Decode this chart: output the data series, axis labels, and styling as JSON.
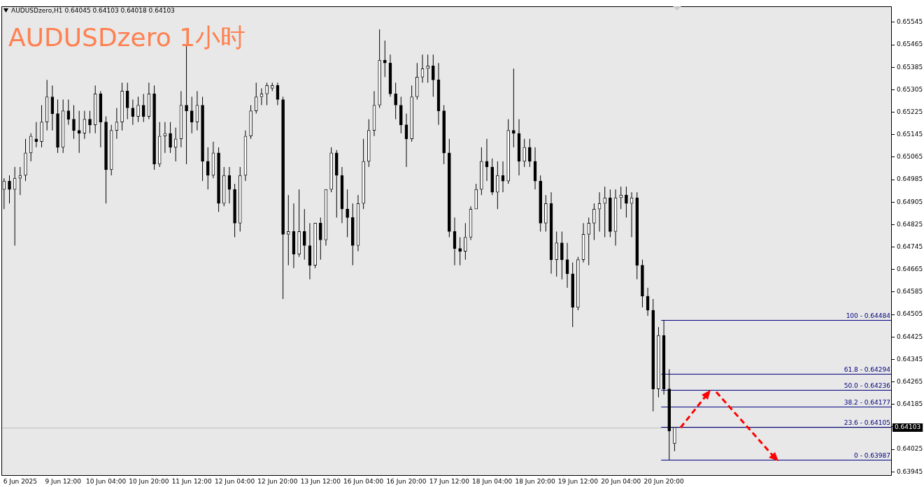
{
  "chart_data": {
    "type": "candlestick",
    "title": "AUDUSDzero 1小时",
    "subtitle": "AUDUSDzero,H1  0.64045 0.64103 0.64018 0.64103",
    "categories": [
      null,
      null,
      null,
      "6 Jun 2025",
      null,
      null,
      null,
      null,
      null,
      null,
      null,
      "9 Jun 12:00",
      null,
      null,
      null,
      null,
      null,
      null,
      null,
      "10 Jun 04:00",
      null,
      null,
      null,
      null,
      null,
      null,
      null,
      "10 Jun 20:00",
      null,
      null,
      null,
      null,
      null,
      null,
      null,
      "11 Jun 12:00",
      null,
      null,
      null,
      null,
      null,
      null,
      null,
      "12 Jun 04:00",
      null,
      null,
      null,
      null,
      null,
      null,
      null,
      "12 Jun 20:00",
      null,
      null,
      null,
      null,
      null,
      null,
      null,
      "13 Jun 12:00",
      null,
      null,
      null,
      null,
      null,
      null,
      null,
      "16 Jun 04:00",
      null,
      null,
      null,
      null,
      null,
      null,
      null,
      "16 Jun 20:00",
      null,
      null,
      null,
      null,
      null,
      null,
      null,
      "17 Jun 12:00",
      null,
      null,
      null,
      null,
      null,
      null,
      null,
      "18 Jun 04:00",
      null,
      null,
      null,
      null,
      null,
      null,
      null,
      "18 Jun 20:00",
      null,
      null,
      null,
      null,
      null,
      null,
      null,
      "19 Jun 12:00",
      null,
      null,
      null,
      null,
      null,
      null,
      null,
      "20 Jun 04:00",
      null,
      null,
      null,
      null,
      null,
      null,
      null,
      "20 Jun 20:00",
      null,
      null,
      null,
      null,
      null,
      null,
      null,
      null,
      null,
      null,
      null,
      null,
      null,
      null,
      null,
      null,
      null,
      null,
      null,
      null,
      null,
      null,
      null,
      null,
      null,
      null,
      null,
      null,
      null,
      null,
      null,
      null,
      null,
      null,
      null,
      null,
      null,
      null,
      null,
      null,
      null,
      null
    ],
    "ohlc": [
      [
        0.6495,
        0.6499,
        0.6488,
        0.6498
      ],
      [
        0.6498,
        0.65,
        0.649,
        0.6495
      ],
      [
        0.6495,
        0.6503,
        0.6475,
        0.6499
      ],
      [
        0.6499,
        0.6503,
        0.6493,
        0.65
      ],
      [
        0.65,
        0.6513,
        0.6498,
        0.6508
      ],
      [
        0.6508,
        0.6515,
        0.6505,
        0.6514
      ],
      [
        0.6513,
        0.6519,
        0.651,
        0.6512
      ],
      [
        0.6512,
        0.6525,
        0.651,
        0.6519
      ],
      [
        0.6519,
        0.6534,
        0.6516,
        0.6528
      ],
      [
        0.6528,
        0.6532,
        0.6516,
        0.6522
      ],
      [
        0.6522,
        0.6527,
        0.6508,
        0.651
      ],
      [
        0.651,
        0.6527,
        0.6508,
        0.6523
      ],
      [
        0.6523,
        0.6527,
        0.6518,
        0.652
      ],
      [
        0.652,
        0.6525,
        0.6513,
        0.6516
      ],
      [
        0.6516,
        0.6523,
        0.6508,
        0.6515
      ],
      [
        0.6515,
        0.6523,
        0.6513,
        0.652
      ],
      [
        0.652,
        0.6523,
        0.6515,
        0.6518
      ],
      [
        0.6518,
        0.6532,
        0.6515,
        0.6529
      ],
      [
        0.6529,
        0.653,
        0.651,
        0.6519
      ],
      [
        0.6519,
        0.6521,
        0.649,
        0.6502
      ],
      [
        0.6502,
        0.6518,
        0.65,
        0.6516
      ],
      [
        0.6516,
        0.6524,
        0.6513,
        0.6519
      ],
      [
        0.6519,
        0.6533,
        0.6516,
        0.653
      ],
      [
        0.653,
        0.6533,
        0.652,
        0.6524
      ],
      [
        0.6524,
        0.6527,
        0.6518,
        0.6521
      ],
      [
        0.6521,
        0.6528,
        0.6519,
        0.6525
      ],
      [
        0.6525,
        0.6529,
        0.6519,
        0.6521
      ],
      [
        0.6521,
        0.6533,
        0.652,
        0.6529
      ],
      [
        0.6529,
        0.6532,
        0.6502,
        0.6504
      ],
      [
        0.6504,
        0.6519,
        0.6503,
        0.6514
      ],
      [
        0.6514,
        0.6519,
        0.6508,
        0.6515
      ],
      [
        0.6515,
        0.6519,
        0.6508,
        0.651
      ],
      [
        0.651,
        0.6517,
        0.6505,
        0.6513
      ],
      [
        0.6513,
        0.653,
        0.651,
        0.6525
      ],
      [
        0.6525,
        0.6546,
        0.6504,
        0.6523
      ],
      [
        0.6523,
        0.6528,
        0.6515,
        0.6519
      ],
      [
        0.6519,
        0.653,
        0.6516,
        0.6525
      ],
      [
        0.6525,
        0.6528,
        0.6498,
        0.6505
      ],
      [
        0.6505,
        0.651,
        0.6495,
        0.65
      ],
      [
        0.65,
        0.6512,
        0.6499,
        0.6508
      ],
      [
        0.6508,
        0.651,
        0.6487,
        0.649
      ],
      [
        0.649,
        0.6503,
        0.6489,
        0.65
      ],
      [
        0.65,
        0.6503,
        0.649,
        0.6495
      ],
      [
        0.6495,
        0.6497,
        0.6478,
        0.6483
      ],
      [
        0.6483,
        0.6503,
        0.648,
        0.65
      ],
      [
        0.65,
        0.6516,
        0.6498,
        0.6514
      ],
      [
        0.6514,
        0.6525,
        0.6513,
        0.6523
      ],
      [
        0.6523,
        0.6533,
        0.6522,
        0.6528
      ],
      [
        0.6528,
        0.6531,
        0.6525,
        0.6529
      ],
      [
        0.6529,
        0.6533,
        0.6525,
        0.6532
      ],
      [
        0.6531,
        0.6533,
        0.653,
        0.6532
      ],
      [
        0.6532,
        0.6533,
        0.6525,
        0.6527
      ],
      [
        0.6527,
        0.6528,
        0.6456,
        0.6479
      ],
      [
        0.6479,
        0.6493,
        0.6468,
        0.648
      ],
      [
        0.648,
        0.649,
        0.6467,
        0.6472
      ],
      [
        0.6472,
        0.6495,
        0.6471,
        0.648
      ],
      [
        0.648,
        0.6488,
        0.647,
        0.6475
      ],
      [
        0.6475,
        0.6483,
        0.6463,
        0.6468
      ],
      [
        0.6468,
        0.6483,
        0.6467,
        0.6483
      ],
      [
        0.6483,
        0.6485,
        0.647,
        0.6477
      ],
      [
        0.6477,
        0.6495,
        0.6475,
        0.6495
      ],
      [
        0.6495,
        0.651,
        0.6494,
        0.6508
      ],
      [
        0.6508,
        0.6509,
        0.6485,
        0.65
      ],
      [
        0.65,
        0.6503,
        0.6483,
        0.6488
      ],
      [
        0.6488,
        0.6495,
        0.6478,
        0.6485
      ],
      [
        0.6485,
        0.649,
        0.6468,
        0.6475
      ],
      [
        0.6475,
        0.6493,
        0.6473,
        0.649
      ],
      [
        0.649,
        0.6513,
        0.6488,
        0.6505
      ],
      [
        0.6505,
        0.652,
        0.6503,
        0.6516
      ],
      [
        0.6516,
        0.653,
        0.6514,
        0.6525
      ],
      [
        0.6525,
        0.6552,
        0.6524,
        0.6541
      ],
      [
        0.6541,
        0.6548,
        0.6535,
        0.654
      ],
      [
        0.654,
        0.6543,
        0.6528,
        0.6529
      ],
      [
        0.6529,
        0.6533,
        0.652,
        0.6525
      ],
      [
        0.6525,
        0.6528,
        0.6515,
        0.6518
      ],
      [
        0.6518,
        0.6522,
        0.6503,
        0.6513
      ],
      [
        0.6513,
        0.6532,
        0.6512,
        0.6528
      ],
      [
        0.6528,
        0.654,
        0.6527,
        0.6535
      ],
      [
        0.6535,
        0.6543,
        0.6533,
        0.6538
      ],
      [
        0.6538,
        0.6543,
        0.6533,
        0.6539
      ],
      [
        0.6539,
        0.6543,
        0.6528,
        0.6534
      ],
      [
        0.6534,
        0.654,
        0.6518,
        0.6523
      ],
      [
        0.6523,
        0.6525,
        0.6504,
        0.6508
      ],
      [
        0.6508,
        0.6513,
        0.6478,
        0.648
      ],
      [
        0.648,
        0.6485,
        0.6468,
        0.6474
      ],
      [
        0.6474,
        0.6478,
        0.6468,
        0.6473
      ],
      [
        0.6473,
        0.6483,
        0.647,
        0.6478
      ],
      [
        0.6478,
        0.6489,
        0.6477,
        0.6488
      ],
      [
        0.6488,
        0.6497,
        0.6488,
        0.6495
      ],
      [
        0.6495,
        0.651,
        0.6493,
        0.6505
      ],
      [
        0.6505,
        0.6513,
        0.6498,
        0.6503
      ],
      [
        0.6503,
        0.6506,
        0.6493,
        0.6494
      ],
      [
        0.6494,
        0.6505,
        0.6488,
        0.65
      ],
      [
        0.65,
        0.6505,
        0.6494,
        0.6498
      ],
      [
        0.6498,
        0.652,
        0.6497,
        0.6516
      ],
      [
        0.6516,
        0.6538,
        0.651,
        0.6515
      ],
      [
        0.6515,
        0.652,
        0.65,
        0.6505
      ],
      [
        0.6505,
        0.6513,
        0.6503,
        0.651
      ],
      [
        0.651,
        0.6513,
        0.6503,
        0.6505
      ],
      [
        0.6505,
        0.651,
        0.6495,
        0.6498
      ],
      [
        0.6498,
        0.65,
        0.648,
        0.6483
      ],
      [
        0.6483,
        0.6493,
        0.648,
        0.649
      ],
      [
        0.649,
        0.6494,
        0.6465,
        0.647
      ],
      [
        0.647,
        0.648,
        0.6464,
        0.6476
      ],
      [
        0.6476,
        0.648,
        0.6463,
        0.647
      ],
      [
        0.647,
        0.6476,
        0.646,
        0.6465
      ],
      [
        0.6465,
        0.6469,
        0.6446,
        0.6453
      ],
      [
        0.6453,
        0.6471,
        0.6452,
        0.647
      ],
      [
        0.647,
        0.6483,
        0.6469,
        0.6479
      ],
      [
        0.6479,
        0.6485,
        0.6468,
        0.6483
      ],
      [
        0.6483,
        0.649,
        0.6477,
        0.6488
      ],
      [
        0.6488,
        0.6494,
        0.648,
        0.649
      ],
      [
        0.649,
        0.6496,
        0.6478,
        0.6492
      ],
      [
        0.6492,
        0.6495,
        0.6478,
        0.648
      ],
      [
        0.648,
        0.6495,
        0.6475,
        0.6492
      ],
      [
        0.6492,
        0.6496,
        0.6488,
        0.6493
      ],
      [
        0.6493,
        0.6496,
        0.6485,
        0.649
      ],
      [
        0.649,
        0.6494,
        0.6478,
        0.6492
      ],
      [
        0.6492,
        0.6494,
        0.6463,
        0.6468
      ],
      [
        0.6468,
        0.647,
        0.6453,
        0.6457
      ],
      [
        0.6457,
        0.646,
        0.645,
        0.6452
      ],
      [
        0.6452,
        0.6456,
        0.6416,
        0.6424
      ],
      [
        0.6424,
        0.6446,
        0.6421,
        0.6443
      ],
      [
        0.6443,
        0.64484,
        0.6422,
        0.6424
      ],
      [
        0.6424,
        0.6431,
        0.63987,
        0.6409
      ],
      [
        0.64045,
        0.64103,
        0.64018,
        0.64103
      ],
      null,
      null,
      null,
      null,
      null,
      null,
      null,
      null,
      null,
      null,
      null,
      null,
      null,
      null,
      null,
      null,
      null,
      null,
      null,
      null,
      null,
      null,
      null,
      null,
      null,
      null,
      null,
      null,
      null,
      null,
      null,
      null,
      null,
      null,
      null,
      null,
      null,
      null,
      null,
      null
    ],
    "ylim": [
      0.63933,
      0.65602
    ],
    "yticks": [
      0.63945,
      0.64025,
      {
        "value": 0.64105,
        "label": null
      },
      0.64185,
      0.64265,
      0.64345,
      0.64425,
      0.64505,
      0.64585,
      0.64665,
      0.64745,
      0.64825,
      0.64905,
      0.64985,
      0.65065,
      0.65145,
      0.65225,
      0.65305,
      0.65385,
      0.65465,
      0.65545
    ],
    "annotations": [
      {
        "text": "100 - 0.64484",
        "y": 0.64484
      },
      {
        "text": "61.8 - 0.64294",
        "y": 0.64294
      },
      {
        "text": "50.0 - 0.64236",
        "y": 0.64236
      },
      {
        "text": "38.2 - 0.64177",
        "y": 0.64177
      },
      {
        "text": "23.6 - 0.64105",
        "y": 0.64105
      },
      {
        "text": "0 - 0.63987",
        "y": 0.63987
      }
    ],
    "ref_lines": [
      {
        "axis": "y",
        "value": 0.64484,
        "color": "#000080"
      },
      {
        "axis": "y",
        "value": 0.64294,
        "color": "#000080"
      },
      {
        "axis": "y",
        "value": 0.64236,
        "color": "#000080"
      },
      {
        "axis": "y",
        "value": 0.64177,
        "color": "#000080"
      },
      {
        "axis": "y",
        "value": 0.64105,
        "color": "#000080"
      },
      {
        "axis": "y",
        "value": 0.63987,
        "color": "#000080"
      },
      {
        "axis": "y",
        "value": 0.64103,
        "label": "0.64103",
        "color": "#c0c0c0"
      }
    ],
    "legend": false
  }
}
